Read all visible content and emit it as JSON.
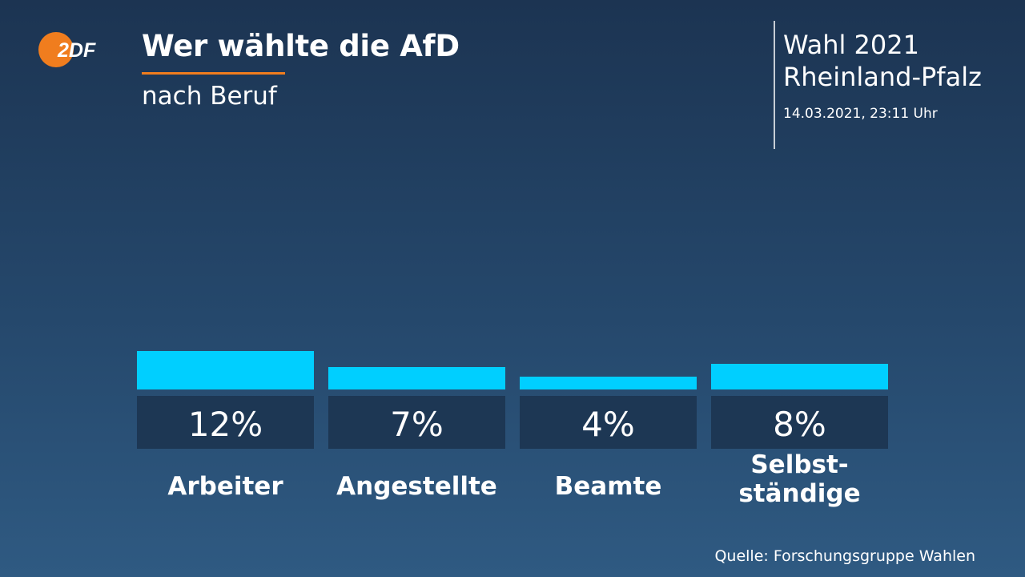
{
  "header": {
    "title": "Wer wählte die AfD",
    "subtitle": "nach Beruf"
  },
  "logo": {
    "icon": "zdf-logo-icon",
    "text": "2DF"
  },
  "election": {
    "line1": "Wahl 2021",
    "line2": "Rheinland-Pfalz",
    "timestamp": "14.03.2021, 23:11 Uhr"
  },
  "source": "Quelle: Forschungsgruppe Wahlen",
  "colors": {
    "bar": "#00cfff",
    "label_box": "#1d3754",
    "accent": "#f07d1e"
  },
  "chart_data": {
    "type": "bar",
    "title": "Wer wählte die AfD",
    "subtitle": "nach Beruf",
    "categories": [
      "Arbeiter",
      "Angestellte",
      "Beamte",
      "Selbst-\nständige"
    ],
    "values": [
      12,
      7,
      4,
      8
    ],
    "value_labels": [
      "12%",
      "7%",
      "4%",
      "8%"
    ],
    "unit": "%",
    "ylim": [
      0,
      100
    ],
    "xlabel": "",
    "ylabel": "",
    "grid": false
  }
}
